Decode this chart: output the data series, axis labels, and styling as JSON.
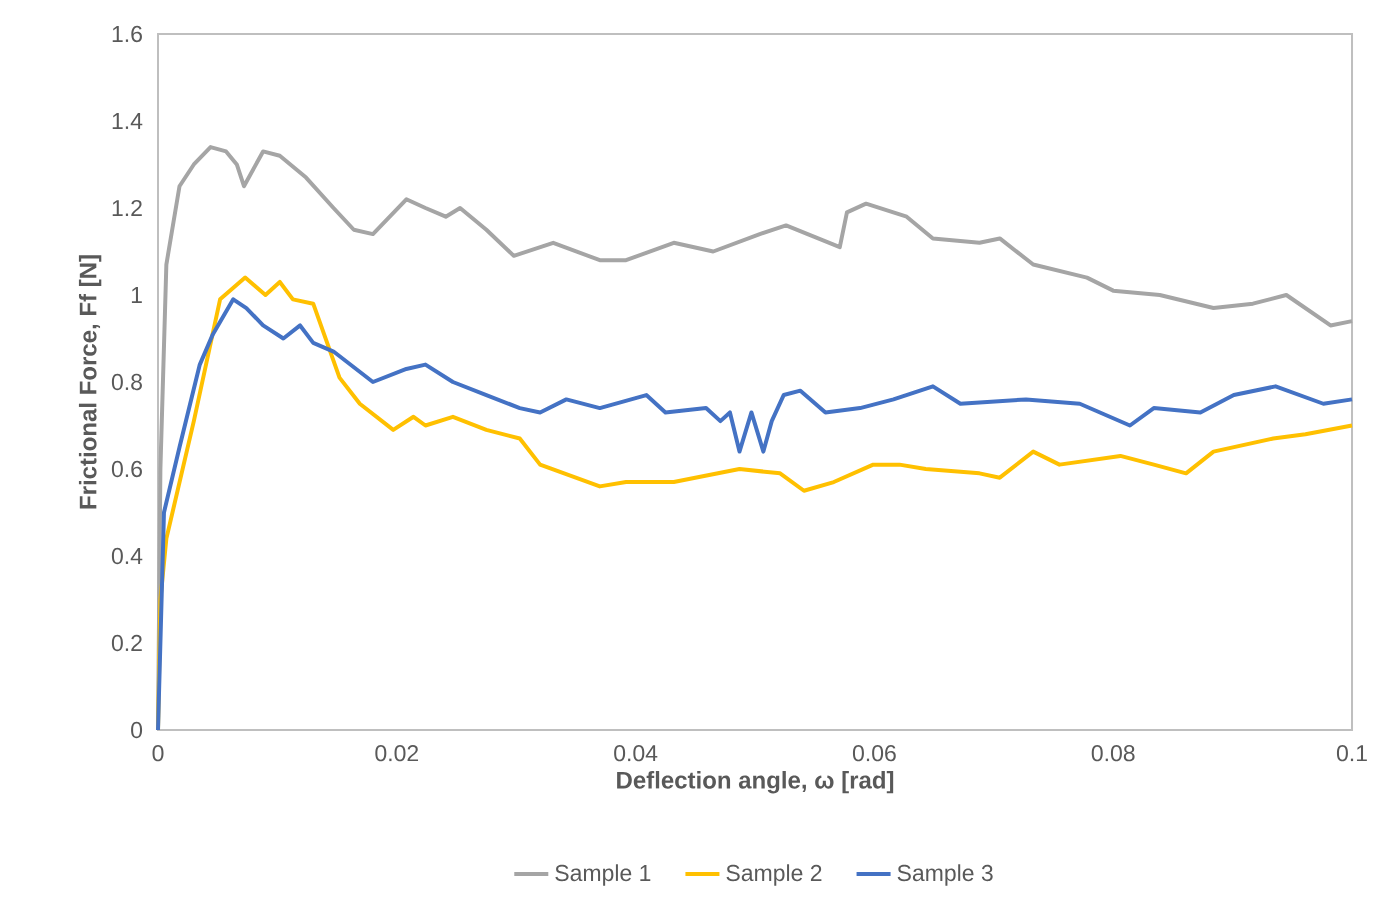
{
  "chart_data": {
    "type": "line",
    "xlabel": "Deflection angle, ω [rad]",
    "ylabel": "Frictional Force, Ff [N]",
    "xlim": [
      0,
      0.1
    ],
    "ylim": [
      0,
      1.6
    ],
    "xticks": [
      0,
      0.02,
      0.04,
      0.06,
      0.08,
      0.1
    ],
    "yticks": [
      0,
      0.2,
      0.4,
      0.6,
      0.8,
      1,
      1.2,
      1.4,
      1.6
    ],
    "grid": false,
    "legend": "bottom",
    "marker": "none",
    "line_style": "solid",
    "series": [
      {
        "name": "Sample 1",
        "color": "#a5a5a5",
        "x": [
          0,
          0.0002,
          0.0007,
          0.0018,
          0.003,
          0.0044,
          0.0057,
          0.0066,
          0.0072,
          0.0088,
          0.0102,
          0.0124,
          0.0147,
          0.0164,
          0.018,
          0.0208,
          0.0224,
          0.0241,
          0.0253,
          0.0275,
          0.0298,
          0.0331,
          0.037,
          0.0392,
          0.0432,
          0.0465,
          0.0504,
          0.0526,
          0.0571,
          0.0577,
          0.0593,
          0.0627,
          0.0649,
          0.0688,
          0.0705,
          0.0733,
          0.0778,
          0.08,
          0.0839,
          0.0884,
          0.0917,
          0.0945,
          0.0982,
          0.1
        ],
        "values": [
          0,
          0.6,
          1.07,
          1.25,
          1.3,
          1.34,
          1.33,
          1.3,
          1.25,
          1.33,
          1.32,
          1.27,
          1.2,
          1.15,
          1.14,
          1.22,
          1.2,
          1.18,
          1.2,
          1.15,
          1.09,
          1.12,
          1.08,
          1.08,
          1.12,
          1.1,
          1.14,
          1.16,
          1.11,
          1.19,
          1.21,
          1.18,
          1.13,
          1.12,
          1.13,
          1.07,
          1.04,
          1.01,
          1.0,
          0.97,
          0.98,
          1.0,
          0.93,
          0.94
        ]
      },
      {
        "name": "Sample 2",
        "color": "#ffc000",
        "x": [
          0,
          0.0002,
          0.0007,
          0.003,
          0.0052,
          0.0073,
          0.009,
          0.0102,
          0.0113,
          0.013,
          0.0152,
          0.0169,
          0.0197,
          0.0214,
          0.0224,
          0.0247,
          0.0275,
          0.0303,
          0.032,
          0.037,
          0.0392,
          0.0432,
          0.0487,
          0.0521,
          0.0541,
          0.0566,
          0.0599,
          0.0621,
          0.0643,
          0.0688,
          0.0705,
          0.0733,
          0.0755,
          0.0806,
          0.0834,
          0.0861,
          0.0884,
          0.0934,
          0.0961,
          0.1
        ],
        "values": [
          0,
          0.3,
          0.44,
          0.71,
          0.99,
          1.04,
          1.0,
          1.03,
          0.99,
          0.98,
          0.81,
          0.75,
          0.69,
          0.72,
          0.7,
          0.72,
          0.69,
          0.67,
          0.61,
          0.56,
          0.57,
          0.57,
          0.6,
          0.59,
          0.55,
          0.57,
          0.61,
          0.61,
          0.6,
          0.59,
          0.58,
          0.64,
          0.61,
          0.63,
          0.61,
          0.59,
          0.64,
          0.67,
          0.68,
          0.7
        ]
      },
      {
        "name": "Sample 3",
        "color": "#4472c4",
        "x": [
          0,
          0.0005,
          0.0018,
          0.0035,
          0.0046,
          0.0063,
          0.0074,
          0.0088,
          0.0105,
          0.0119,
          0.013,
          0.0147,
          0.018,
          0.0208,
          0.0224,
          0.0247,
          0.0275,
          0.0303,
          0.032,
          0.0342,
          0.037,
          0.0409,
          0.0425,
          0.0459,
          0.0471,
          0.0479,
          0.0487,
          0.0497,
          0.0507,
          0.0514,
          0.0524,
          0.0538,
          0.0559,
          0.0588,
          0.0616,
          0.0649,
          0.0672,
          0.0727,
          0.0772,
          0.0814,
          0.0834,
          0.0873,
          0.0901,
          0.0936,
          0.0976,
          0.1
        ],
        "values": [
          0,
          0.5,
          0.65,
          0.84,
          0.91,
          0.99,
          0.97,
          0.93,
          0.9,
          0.93,
          0.89,
          0.87,
          0.8,
          0.83,
          0.84,
          0.8,
          0.77,
          0.74,
          0.73,
          0.76,
          0.74,
          0.77,
          0.73,
          0.74,
          0.71,
          0.73,
          0.64,
          0.73,
          0.64,
          0.71,
          0.77,
          0.78,
          0.73,
          0.74,
          0.76,
          0.79,
          0.75,
          0.76,
          0.75,
          0.7,
          0.74,
          0.73,
          0.77,
          0.79,
          0.75,
          0.76
        ]
      }
    ]
  }
}
